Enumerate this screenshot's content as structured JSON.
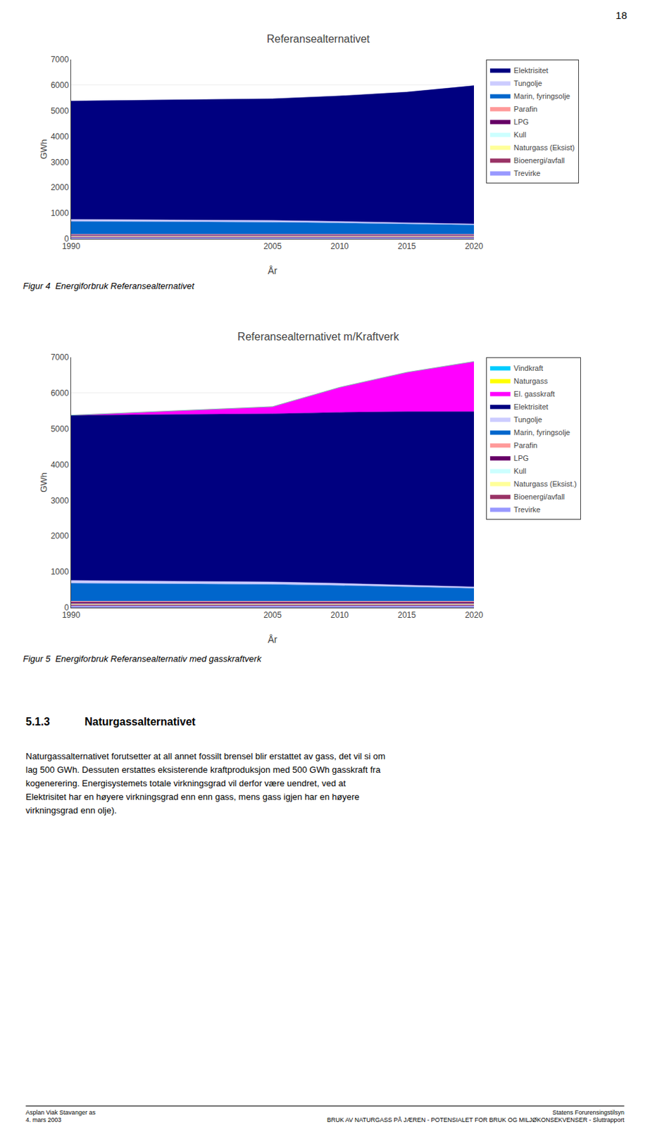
{
  "chart_data": [
    {
      "type": "area",
      "stacked": true,
      "title": "Referansealternativet",
      "x_label": "År",
      "y_label": "GWh",
      "x": [
        1990,
        2005,
        2010,
        2015,
        2020
      ],
      "xlim": [
        1990,
        2020
      ],
      "xticks": [
        1990,
        2005,
        2010,
        2015,
        2020
      ],
      "ylim": [
        0,
        7000
      ],
      "yticks": [
        0,
        1000,
        2000,
        3000,
        4000,
        5000,
        6000,
        7000
      ],
      "grid": "y",
      "legend": "right",
      "caption": "Figur 4  Energiforbruk Referansealternativet",
      "series": [
        {
          "name": "Elektrisitet",
          "color": "#000080",
          "values": [
            4620,
            4750,
            4900,
            5100,
            5400
          ]
        },
        {
          "name": "Tungolje",
          "color": "#CCCCFF",
          "values": [
            80,
            70,
            60,
            50,
            40
          ]
        },
        {
          "name": "Marin, fyringsolje",
          "color": "#0066CC",
          "values": [
            500,
            470,
            440,
            400,
            360
          ]
        },
        {
          "name": "Parafin",
          "color": "#FF9999",
          "values": [
            30,
            30,
            30,
            30,
            30
          ]
        },
        {
          "name": "LPG",
          "color": "#660066",
          "values": [
            40,
            40,
            40,
            40,
            40
          ]
        },
        {
          "name": "Kull",
          "color": "#CCFFFF",
          "values": [
            10,
            10,
            10,
            10,
            10
          ]
        },
        {
          "name": "Naturgass (Eksist)",
          "color": "#FFFF99",
          "values": [
            20,
            20,
            20,
            20,
            20
          ]
        },
        {
          "name": "Bioenergi/avfall",
          "color": "#993366",
          "values": [
            30,
            30,
            30,
            30,
            30
          ]
        },
        {
          "name": "Trevirke",
          "color": "#9999FF",
          "values": [
            50,
            50,
            50,
            50,
            50
          ]
        }
      ]
    },
    {
      "type": "area",
      "stacked": true,
      "title": "Referansealternativet m/Kraftverk",
      "x_label": "År",
      "y_label": "GWh",
      "x": [
        1990,
        2005,
        2010,
        2015,
        2020
      ],
      "xlim": [
        1990,
        2020
      ],
      "xticks": [
        1990,
        2005,
        2010,
        2015,
        2020
      ],
      "ylim": [
        0,
        7000
      ],
      "yticks": [
        0,
        1000,
        2000,
        3000,
        4000,
        5000,
        6000,
        7000
      ],
      "grid": "y",
      "legend": "right",
      "caption": "Figur 5  Energiforbruk Referansealternativ med gasskraftverk",
      "series": [
        {
          "name": "Vindkraft",
          "color": "#00CCFF",
          "values": [
            0,
            0,
            0,
            0,
            0
          ]
        },
        {
          "name": "Naturgass",
          "color": "#FFFF00",
          "values": [
            0,
            0,
            0,
            0,
            0
          ]
        },
        {
          "name": "El. gasskraft",
          "color": "#FF00FF",
          "values": [
            0,
            200,
            700,
            1100,
            1400
          ]
        },
        {
          "name": "Elektrisitet",
          "color": "#000080",
          "values": [
            4620,
            4700,
            4780,
            4850,
            4900
          ]
        },
        {
          "name": "Tungolje",
          "color": "#CCCCFF",
          "values": [
            80,
            70,
            60,
            50,
            40
          ]
        },
        {
          "name": "Marin, fyringsolje",
          "color": "#0066CC",
          "values": [
            500,
            470,
            440,
            400,
            360
          ]
        },
        {
          "name": "Parafin",
          "color": "#FF9999",
          "values": [
            30,
            30,
            30,
            30,
            30
          ]
        },
        {
          "name": "LPG",
          "color": "#660066",
          "values": [
            40,
            40,
            40,
            40,
            40
          ]
        },
        {
          "name": "Kull",
          "color": "#CCFFFF",
          "values": [
            10,
            10,
            10,
            10,
            10
          ]
        },
        {
          "name": "Naturgass (Eksist.)",
          "color": "#FFFF99",
          "values": [
            20,
            20,
            20,
            20,
            20
          ]
        },
        {
          "name": "Bioenergi/avfall",
          "color": "#993366",
          "values": [
            30,
            30,
            30,
            30,
            30
          ]
        },
        {
          "name": "Trevirke",
          "color": "#9999FF",
          "values": [
            50,
            50,
            50,
            50,
            50
          ]
        }
      ]
    }
  ],
  "section_number": "5.1.3",
  "section_heading": "Naturgassalternativet",
  "body_lines": [
    "Naturgassalternativet forutsetter at all annet fossilt brensel blir erstattet av gass, det vil si om",
    "lag 500 GWh. Dessuten erstattes eksisterende kraftproduksjon med 500 GWh gasskraft fra",
    "kogenerering. Energisystemets totale virkningsgrad vil derfor være uendret, ved at",
    "Elektrisitet har en høyere virkningsgrad enn enn gass, mens gass igjen har en høyere",
    "virkningsgrad enn olje)."
  ],
  "page_number": "18",
  "footer_left": [
    "Asplan Viak Stavanger as",
    "4. mars 2003"
  ],
  "footer_right": [
    "Statens Forurensingstilsyn",
    "BRUK AV NATURGASS PÅ JÆREN - POTENSIALET FOR BRUK OG MILJØKONSEKVENSER - Sluttrapport"
  ]
}
